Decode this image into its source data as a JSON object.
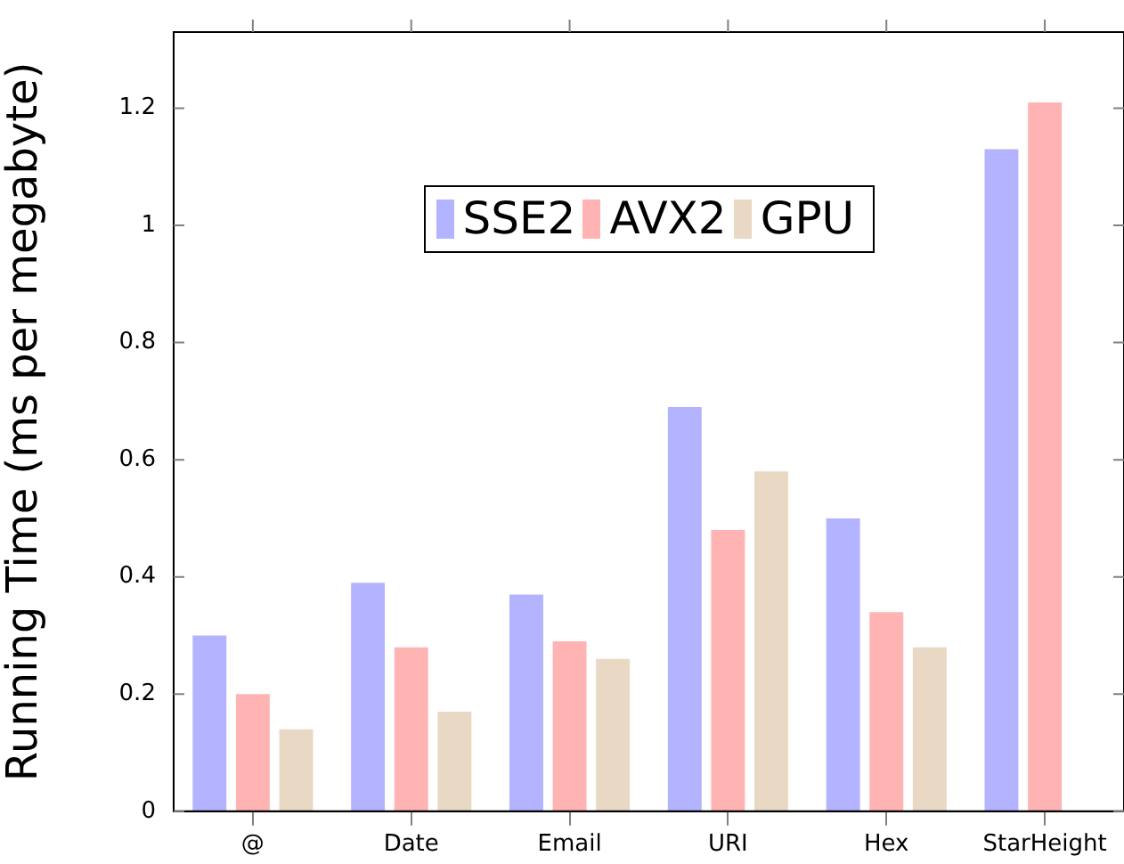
{
  "chart_data": {
    "type": "bar",
    "ylabel": "Running Time (ms per megabyte)",
    "categories": [
      "@",
      "Date",
      "Email",
      "URI",
      "Hex",
      "StarHeight"
    ],
    "series": [
      {
        "name": "SSE2",
        "color": "#b3b3ff",
        "values": [
          0.3,
          0.39,
          0.37,
          0.69,
          0.5,
          1.13
        ]
      },
      {
        "name": "AVX2",
        "color": "#ffb3b3",
        "values": [
          0.2,
          0.28,
          0.29,
          0.48,
          0.34,
          1.21
        ]
      },
      {
        "name": "GPU",
        "color": "#e9d8c4",
        "values": [
          0.14,
          0.17,
          0.26,
          0.58,
          0.28,
          0
        ]
      }
    ],
    "ylim": [
      0,
      1.33
    ],
    "yticks": [
      0,
      0.2,
      0.4,
      0.6,
      0.8,
      1,
      1.2
    ],
    "grid": false,
    "legend": "top"
  }
}
